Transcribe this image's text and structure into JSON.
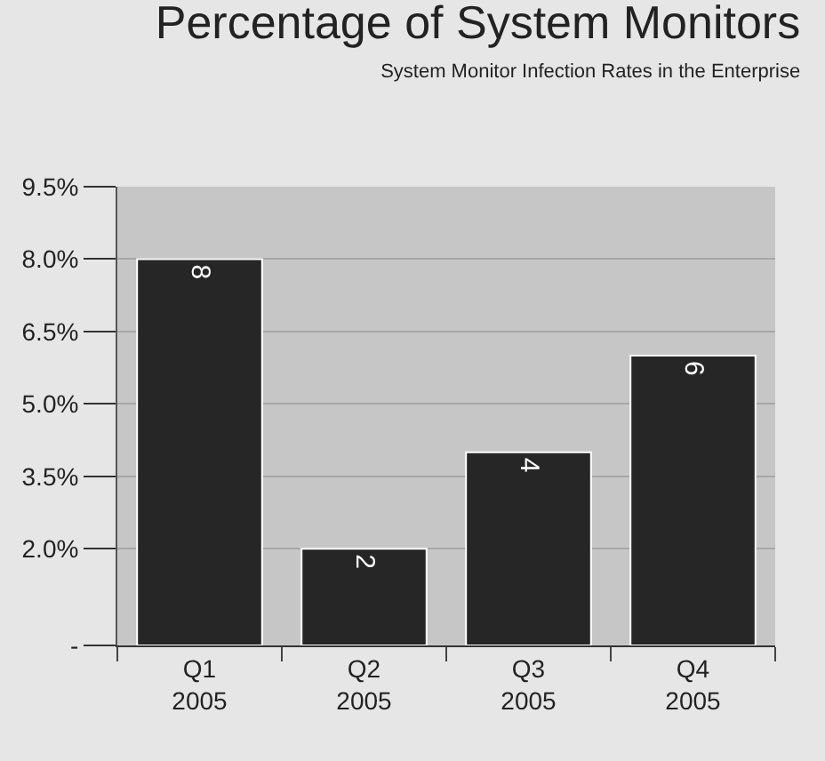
{
  "chart_data": {
    "type": "bar",
    "title": "Percentage of System Monitors",
    "subtitle": "System Monitor Infection Rates in the Enterprise",
    "categories": [
      "Q1\n2005",
      "Q2\n2005",
      "Q3\n2005",
      "Q4\n2005"
    ],
    "values": [
      8,
      2,
      4,
      6
    ],
    "color": "#262626",
    "ylim": [
      0,
      9.5
    ],
    "yticks": [
      {
        "value": 0,
        "label": "-"
      },
      {
        "value": 2,
        "label": "2.0%"
      },
      {
        "value": 3.5,
        "label": "3.5%"
      },
      {
        "value": 5,
        "label": "5.0%"
      },
      {
        "value": 6.5,
        "label": "6.5%"
      },
      {
        "value": 8,
        "label": "8.0%"
      },
      {
        "value": 9.5,
        "label": "9.5%"
      }
    ],
    "grid": "y",
    "data_labels": true,
    "legend": false
  }
}
